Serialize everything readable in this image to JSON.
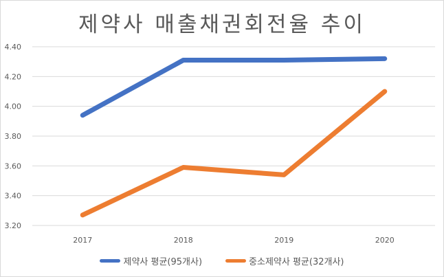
{
  "chart_data": {
    "type": "line",
    "title": "제약사 매출채권회전율 추이",
    "categories": [
      "2017",
      "2018",
      "2019",
      "2020"
    ],
    "series": [
      {
        "name": "제약사 평균(95개사)",
        "values": [
          3.94,
          4.31,
          4.31,
          4.32
        ],
        "color": "#4472C4"
      },
      {
        "name": "중소제약사 평균(32개사)",
        "values": [
          3.27,
          3.59,
          3.54,
          4.1
        ],
        "color": "#ED7D31"
      }
    ],
    "ylim": [
      3.2,
      4.4
    ],
    "yticks": [
      "3.20",
      "3.40",
      "3.60",
      "3.80",
      "4.00",
      "4.20",
      "4.40"
    ],
    "grid": true,
    "legend_position": "bottom"
  }
}
